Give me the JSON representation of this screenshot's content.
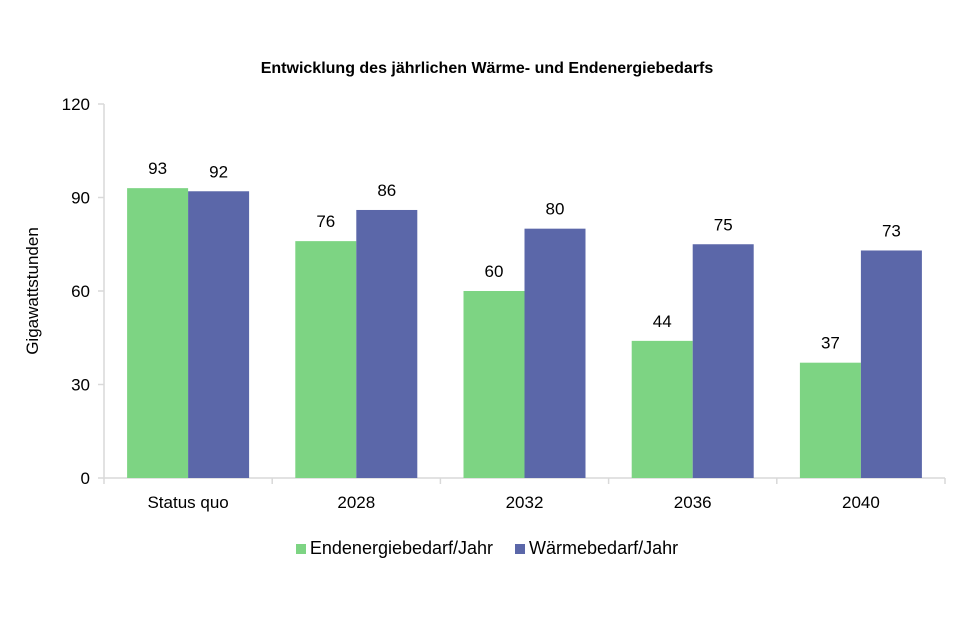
{
  "chart_data": {
    "type": "bar",
    "title": "Entwicklung des jährlichen Wärme- und Endenergiebedarfs",
    "xlabel": "",
    "ylabel": "Gigawattstunden",
    "ylim": [
      0,
      120
    ],
    "yticks": [
      0,
      30,
      60,
      90,
      120
    ],
    "grid": false,
    "legend_position": "bottom",
    "categories": [
      "Status quo",
      "2028",
      "2032",
      "2036",
      "2040"
    ],
    "series": [
      {
        "name": "Endenergiebedarf/Jahr",
        "color": "#7DD483",
        "values": [
          93,
          76,
          60,
          44,
          37
        ]
      },
      {
        "name": "Wärmebedarf/Jahr",
        "color": "#5B67A9",
        "values": [
          92,
          86,
          80,
          75,
          73
        ]
      }
    ]
  }
}
